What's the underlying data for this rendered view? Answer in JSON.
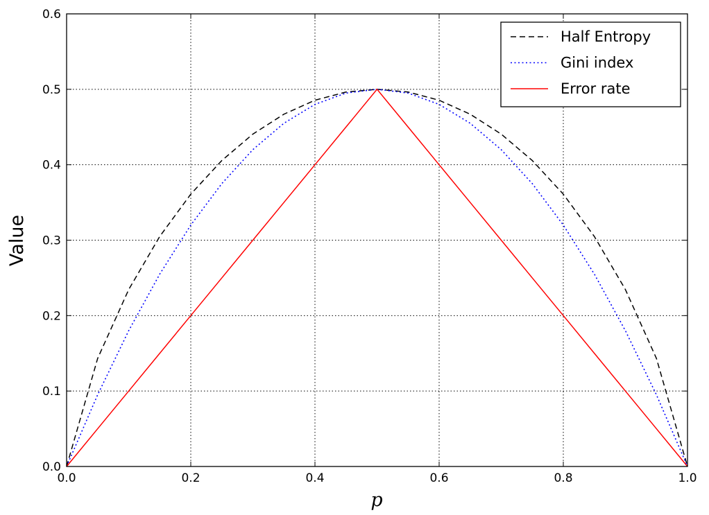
{
  "chart_data": {
    "type": "line",
    "title": "",
    "xlabel": "p",
    "ylabel": "Value",
    "xlim": [
      0.0,
      1.0
    ],
    "ylim": [
      0.0,
      0.6
    ],
    "x_ticks": [
      "0.0",
      "0.2",
      "0.4",
      "0.6",
      "0.8",
      "1.0"
    ],
    "y_ticks": [
      "0.0",
      "0.1",
      "0.2",
      "0.3",
      "0.4",
      "0.5",
      "0.6"
    ],
    "grid": true,
    "legend_position": "top-right",
    "x": [
      0.0,
      0.05,
      0.1,
      0.15,
      0.2,
      0.25,
      0.3,
      0.35,
      0.4,
      0.45,
      0.5,
      0.55,
      0.6,
      0.65,
      0.7,
      0.75,
      0.8,
      0.85,
      0.9,
      0.95,
      1.0
    ],
    "series": [
      {
        "name": "Half Entropy",
        "color": "#000000",
        "style": "dashed",
        "values": [
          0.0,
          0.1432,
          0.2345,
          0.3049,
          0.361,
          0.4056,
          0.4406,
          0.467,
          0.4855,
          0.4964,
          0.5,
          0.4964,
          0.4855,
          0.467,
          0.4406,
          0.4056,
          0.361,
          0.3049,
          0.2345,
          0.1432,
          0.0
        ]
      },
      {
        "name": "Gini index",
        "color": "#0000ff",
        "style": "dotted",
        "values": [
          0.0,
          0.095,
          0.18,
          0.255,
          0.32,
          0.375,
          0.42,
          0.455,
          0.48,
          0.495,
          0.5,
          0.495,
          0.48,
          0.455,
          0.42,
          0.375,
          0.32,
          0.255,
          0.18,
          0.095,
          0.0
        ]
      },
      {
        "name": "Error rate",
        "color": "#ff0000",
        "style": "solid",
        "values": [
          0.0,
          0.05,
          0.1,
          0.15,
          0.2,
          0.25,
          0.3,
          0.35,
          0.4,
          0.45,
          0.5,
          0.45,
          0.4,
          0.35,
          0.3,
          0.25,
          0.2,
          0.15,
          0.1,
          0.05,
          0.0
        ]
      }
    ]
  }
}
